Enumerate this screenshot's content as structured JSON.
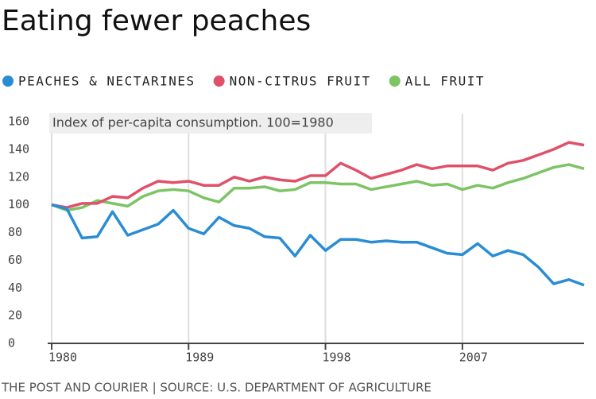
{
  "chart_data": {
    "type": "line",
    "title": "Eating fewer peaches",
    "subtitle": "Index of per-capita consumption. 100=1980",
    "source": "THE POST AND COURIER | SOURCE: U.S. DEPARTMENT OF AGRICULTURE",
    "x": [
      1980,
      1981,
      1982,
      1983,
      1984,
      1985,
      1986,
      1987,
      1988,
      1989,
      1990,
      1991,
      1992,
      1993,
      1994,
      1995,
      1996,
      1997,
      1998,
      1999,
      2000,
      2001,
      2002,
      2003,
      2004,
      2005,
      2006,
      2007,
      2008,
      2009,
      2010,
      2011,
      2012,
      2013,
      2014,
      2015
    ],
    "series": [
      {
        "name": "PEACHES & NECTARINES",
        "color": "#2a8dd4",
        "values": [
          100,
          97,
          76,
          77,
          95,
          78,
          82,
          86,
          96,
          83,
          79,
          91,
          85,
          83,
          77,
          76,
          63,
          78,
          67,
          75,
          75,
          73,
          74,
          73,
          73,
          69,
          65,
          64,
          72,
          63,
          67,
          64,
          55,
          43,
          46,
          42
        ]
      },
      {
        "name": "NON-CITRUS FRUIT",
        "color": "#e0506a",
        "values": [
          100,
          98,
          101,
          101,
          106,
          105,
          112,
          117,
          116,
          117,
          114,
          114,
          120,
          117,
          120,
          118,
          117,
          121,
          121,
          130,
          125,
          119,
          122,
          125,
          129,
          126,
          128,
          128,
          128,
          125,
          130,
          132,
          136,
          140,
          145,
          143
        ]
      },
      {
        "name": "ALL FRUIT",
        "color": "#7cc464",
        "values": [
          100,
          96,
          98,
          103,
          101,
          99,
          106,
          110,
          111,
          110,
          105,
          102,
          112,
          112,
          113,
          110,
          111,
          116,
          116,
          115,
          115,
          111,
          113,
          115,
          117,
          114,
          115,
          111,
          114,
          112,
          116,
          119,
          123,
          127,
          129,
          126
        ]
      }
    ],
    "xlim": [
      1980,
      2015
    ],
    "xticks": [
      1980,
      1989,
      1998,
      2007
    ],
    "ylim": [
      0,
      160
    ],
    "yticks": [
      0,
      20,
      40,
      60,
      80,
      100,
      120,
      140,
      160
    ],
    "grid": "x"
  }
}
